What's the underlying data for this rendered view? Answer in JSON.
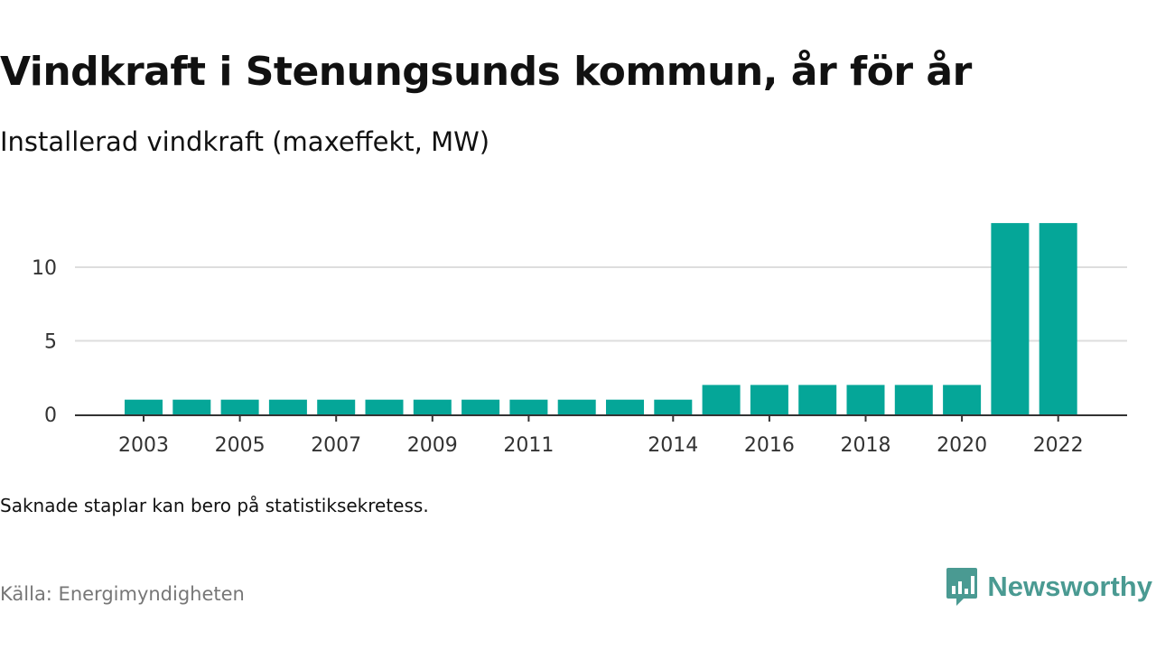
{
  "title": "Vindkraft i Stenungsunds kommun, år för år",
  "subtitle": "Installerad vindkraft (maxeffekt, MW)",
  "note": "Saknade staplar kan bero på statistiksekretess.",
  "source": "Källa: Energimyndigheten",
  "brand": {
    "name": "Newsworthy",
    "color": "#4a9a92"
  },
  "colors": {
    "bar": "#05a698",
    "grid": "#dddddd",
    "axis": "#333333"
  },
  "chart_data": {
    "type": "bar",
    "categories": [
      "2003",
      "2004",
      "2005",
      "2006",
      "2007",
      "2008",
      "2009",
      "2010",
      "2011",
      "2012",
      "2013",
      "2014",
      "2015",
      "2016",
      "2017",
      "2018",
      "2019",
      "2020",
      "2021",
      "2022"
    ],
    "values": [
      1,
      1,
      1,
      1,
      1,
      1,
      1,
      1,
      1,
      1,
      1,
      1,
      2,
      2,
      2,
      2,
      2,
      2,
      13,
      13
    ],
    "x_tick_labels": [
      "2003",
      "2005",
      "2007",
      "2009",
      "2011",
      "2014",
      "2016",
      "2018",
      "2020",
      "2022"
    ],
    "y_ticks": [
      0,
      5,
      10
    ],
    "ylim": [
      0,
      13
    ],
    "xlabel": "",
    "ylabel": "",
    "grid": true,
    "legend": "none"
  }
}
